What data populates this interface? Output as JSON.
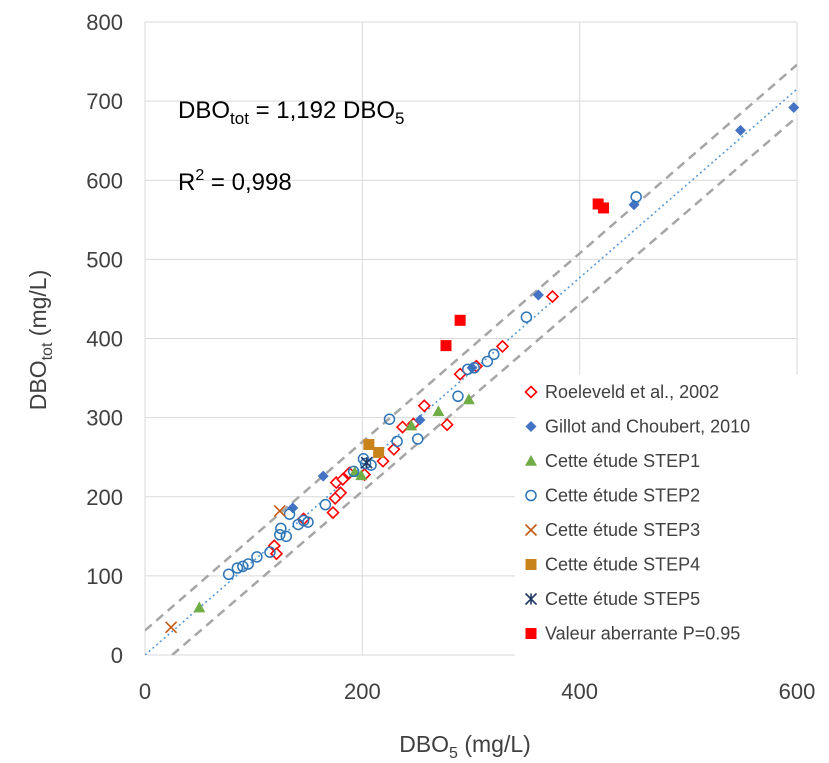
{
  "chart_data": {
    "type": "scatter",
    "xlabel": {
      "main": "DBO",
      "sub": "5",
      "unit": " (mg/L)"
    },
    "ylabel": {
      "main": "DBO",
      "sub": "tot",
      "unit": " (mg/L)"
    },
    "xlim": [
      0,
      600
    ],
    "ylim": [
      0,
      800
    ],
    "x_ticks": [
      0,
      200,
      400,
      600
    ],
    "y_ticks": [
      0,
      100,
      200,
      300,
      400,
      500,
      600,
      700,
      800
    ],
    "grid": "both",
    "legend_position": "right",
    "annotations": {
      "equation": {
        "lhs": "DBO",
        "lhs_sub": "tot",
        "mid": " = 1,192 DBO",
        "rhs_sub": "5"
      },
      "r2": {
        "pre": "R",
        "sup": "2",
        "post": " = 0,998"
      }
    },
    "fit_line": {
      "slope": 1.192,
      "x": [
        0,
        600
      ],
      "color": "#5B9BD5",
      "style": "dotted"
    },
    "bounds": [
      {
        "x": [
          0,
          600
        ],
        "y": [
          31,
          746
        ],
        "color": "#A6A6A6",
        "style": "dashed"
      },
      {
        "x": [
          25,
          600
        ],
        "y": [
          0,
          680
        ],
        "color": "#A6A6A6",
        "style": "dashed"
      }
    ],
    "series": [
      {
        "name": "Roeleveld et al., 2002",
        "marker": "diamond-open",
        "color": "#FF0000",
        "points": [
          [
            119,
            138
          ],
          [
            121,
            128
          ],
          [
            146,
            172
          ],
          [
            173,
            180
          ],
          [
            175,
            198
          ],
          [
            176,
            218
          ],
          [
            180,
            205
          ],
          [
            182,
            222
          ],
          [
            188,
            230
          ],
          [
            202,
            228
          ],
          [
            219,
            245
          ],
          [
            229,
            260
          ],
          [
            237,
            288
          ],
          [
            247,
            292
          ],
          [
            257,
            315
          ],
          [
            278,
            291
          ],
          [
            290,
            355
          ],
          [
            305,
            365
          ],
          [
            329,
            390
          ],
          [
            375,
            453
          ]
        ]
      },
      {
        "name": "Gillot and Choubert, 2010",
        "marker": "diamond",
        "color": "#4472C4",
        "points": [
          [
            136,
            186
          ],
          [
            164,
            226
          ],
          [
            253,
            297
          ],
          [
            301,
            363
          ],
          [
            362,
            455
          ],
          [
            450,
            569
          ],
          [
            548,
            663
          ],
          [
            597,
            692
          ]
        ]
      },
      {
        "name": "Cette étude STEP1",
        "marker": "triangle",
        "color": "#70AD47",
        "points": [
          [
            50,
            60
          ],
          [
            193,
            231
          ],
          [
            199,
            227
          ],
          [
            245,
            290
          ],
          [
            270,
            308
          ],
          [
            298,
            323
          ]
        ]
      },
      {
        "name": "Cette étude STEP2",
        "marker": "circle-open",
        "color": "#2E75B6",
        "points": [
          [
            77,
            102
          ],
          [
            85,
            110
          ],
          [
            90,
            112
          ],
          [
            95,
            115
          ],
          [
            103,
            124
          ],
          [
            115,
            130
          ],
          [
            124,
            152
          ],
          [
            130,
            150
          ],
          [
            125,
            160
          ],
          [
            133,
            178
          ],
          [
            141,
            165
          ],
          [
            146,
            170
          ],
          [
            150,
            168
          ],
          [
            166,
            190
          ],
          [
            192,
            232
          ],
          [
            201,
            248
          ],
          [
            203,
            242
          ],
          [
            208,
            240
          ],
          [
            225,
            298
          ],
          [
            232,
            270
          ],
          [
            251,
            273
          ],
          [
            288,
            327
          ],
          [
            297,
            361
          ],
          [
            303,
            363
          ],
          [
            315,
            371
          ],
          [
            321,
            380
          ],
          [
            351,
            427
          ],
          [
            452,
            579
          ]
        ]
      },
      {
        "name": "Cette étude STEP3",
        "marker": "x",
        "color": "#C55A11",
        "points": [
          [
            24,
            35
          ],
          [
            124,
            182
          ]
        ]
      },
      {
        "name": "Cette étude STEP4",
        "marker": "square",
        "color": "#C9831B",
        "points": [
          [
            206,
            266
          ],
          [
            215,
            256
          ]
        ]
      },
      {
        "name": "Cette étude STEP5",
        "marker": "asterisk",
        "color": "#1F3864",
        "points": [
          [
            204,
            243
          ]
        ]
      },
      {
        "name": "Valeur aberrante P=0.95",
        "marker": "square",
        "color": "#FF0000",
        "points": [
          [
            277,
            391
          ],
          [
            290,
            423
          ],
          [
            417,
            570
          ],
          [
            422,
            565
          ]
        ]
      }
    ]
  }
}
